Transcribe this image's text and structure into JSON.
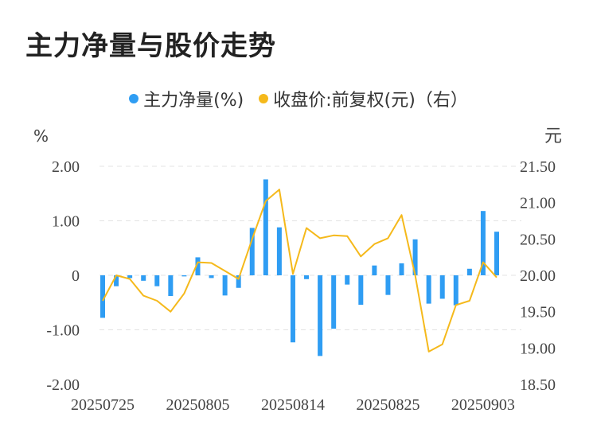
{
  "chart_data": {
    "type": "bar",
    "title": "主力净量与股价走势",
    "legend": [
      {
        "name": "主力净量(%)",
        "color": "#2f9df3"
      },
      {
        "name": "收盘价:前复权(元)（右）",
        "color": "#f5b91b"
      }
    ],
    "left_axis_unit": "%",
    "right_axis_unit": "元",
    "left_ylim": [
      -2.0,
      2.0
    ],
    "right_ylim": [
      18.5,
      21.5
    ],
    "left_ticks": [
      "2.00",
      "1.00",
      "0",
      "-1.00",
      "-2.00"
    ],
    "right_ticks": [
      "21.50",
      "21.00",
      "20.50",
      "20.00",
      "19.50",
      "19.00",
      "18.50"
    ],
    "x_tick_labels": [
      "20250725",
      "20250805",
      "20250814",
      "20250825",
      "20250903"
    ],
    "x_tick_indices": [
      0,
      7,
      14,
      21,
      28
    ],
    "categories": [
      "20250725",
      "20250728",
      "20250729",
      "20250730",
      "20250731",
      "20250801",
      "20250804",
      "20250805",
      "20250806",
      "20250807",
      "20250808",
      "20250811",
      "20250812",
      "20250813",
      "20250814",
      "20250815",
      "20250818",
      "20250819",
      "20250820",
      "20250821",
      "20250822",
      "20250825",
      "20250826",
      "20250827",
      "20250828",
      "20250829",
      "20250901",
      "20250902",
      "20250903",
      "20250904"
    ],
    "series": [
      {
        "name": "主力净量(%)",
        "type": "bar",
        "axis": "left",
        "values": [
          -0.78,
          -0.2,
          -0.05,
          -0.1,
          -0.2,
          -0.38,
          -0.02,
          0.33,
          -0.05,
          -0.37,
          -0.23,
          0.87,
          1.76,
          0.88,
          -1.23,
          -0.07,
          -1.48,
          -0.98,
          -0.17,
          -0.54,
          0.18,
          -0.36,
          0.22,
          0.66,
          -0.52,
          -0.43,
          -0.55,
          0.12,
          1.18,
          0.8
        ]
      },
      {
        "name": "收盘价:前复权(元)（右）",
        "type": "line",
        "axis": "right",
        "values": [
          19.65,
          20.0,
          19.95,
          19.72,
          19.65,
          19.5,
          19.75,
          20.18,
          20.17,
          20.06,
          19.95,
          20.5,
          21.02,
          21.18,
          20.02,
          20.65,
          20.51,
          20.55,
          20.54,
          20.26,
          20.43,
          20.51,
          20.83,
          20.0,
          18.95,
          19.05,
          19.59,
          19.65,
          20.18,
          19.97
        ]
      }
    ]
  }
}
